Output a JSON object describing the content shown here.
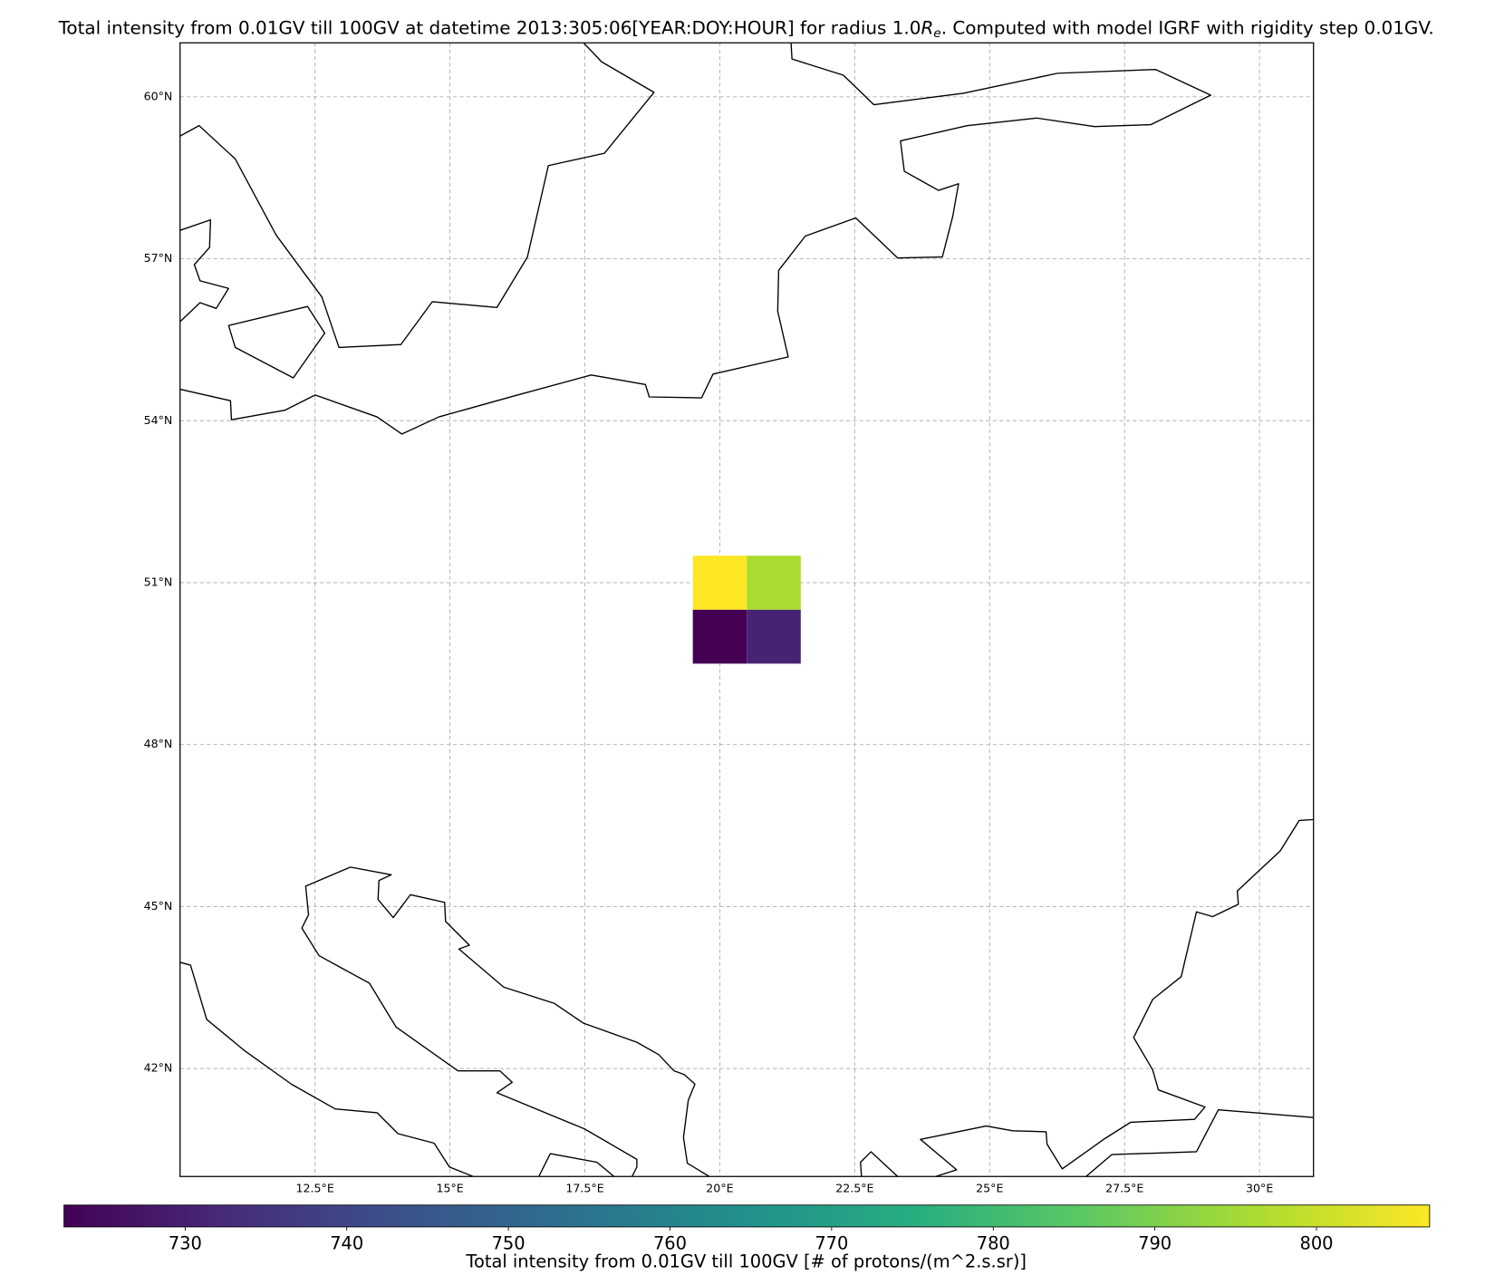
{
  "chart_data": {
    "type": "heatmap",
    "title": [
      "Total intensity from 0.01GV till 100GV at datetime 2013:305:06[YEAR:DOY:HOUR] for radius 1.0",
      "R",
      "e",
      ". Computed with model IGRF with rigidity step 0.01GV."
    ],
    "x": [
      20,
      21
    ],
    "y": [
      50,
      51
    ],
    "values": [
      [
        722.5,
        731
      ],
      [
        807,
        796
      ]
    ],
    "xlim": [
      10,
      31
    ],
    "ylim": [
      40,
      61
    ],
    "xticks": [
      {
        "value": 12.5,
        "label": "12.5°E"
      },
      {
        "value": 15,
        "label": "15°E"
      },
      {
        "value": 17.5,
        "label": "17.5°E"
      },
      {
        "value": 20,
        "label": "20°E"
      },
      {
        "value": 22.5,
        "label": "22.5°E"
      },
      {
        "value": 25,
        "label": "25°E"
      },
      {
        "value": 27.5,
        "label": "27.5°E"
      },
      {
        "value": 30,
        "label": "30°E"
      }
    ],
    "yticks": [
      {
        "value": 42,
        "label": "42°N"
      },
      {
        "value": 45,
        "label": "45°N"
      },
      {
        "value": 48,
        "label": "48°N"
      },
      {
        "value": 51,
        "label": "51°N"
      },
      {
        "value": 54,
        "label": "54°N"
      },
      {
        "value": 57,
        "label": "57°N"
      },
      {
        "value": 60,
        "label": "60°N"
      }
    ],
    "grid": true,
    "colorbar": {
      "colormap": "viridis",
      "lim": [
        722.5,
        807
      ],
      "ticks": [
        730,
        740,
        750,
        760,
        770,
        780,
        790,
        800
      ],
      "label": "Total intensity from 0.01GV till 100GV [# of protons/(m^2.s.sr)]"
    }
  }
}
